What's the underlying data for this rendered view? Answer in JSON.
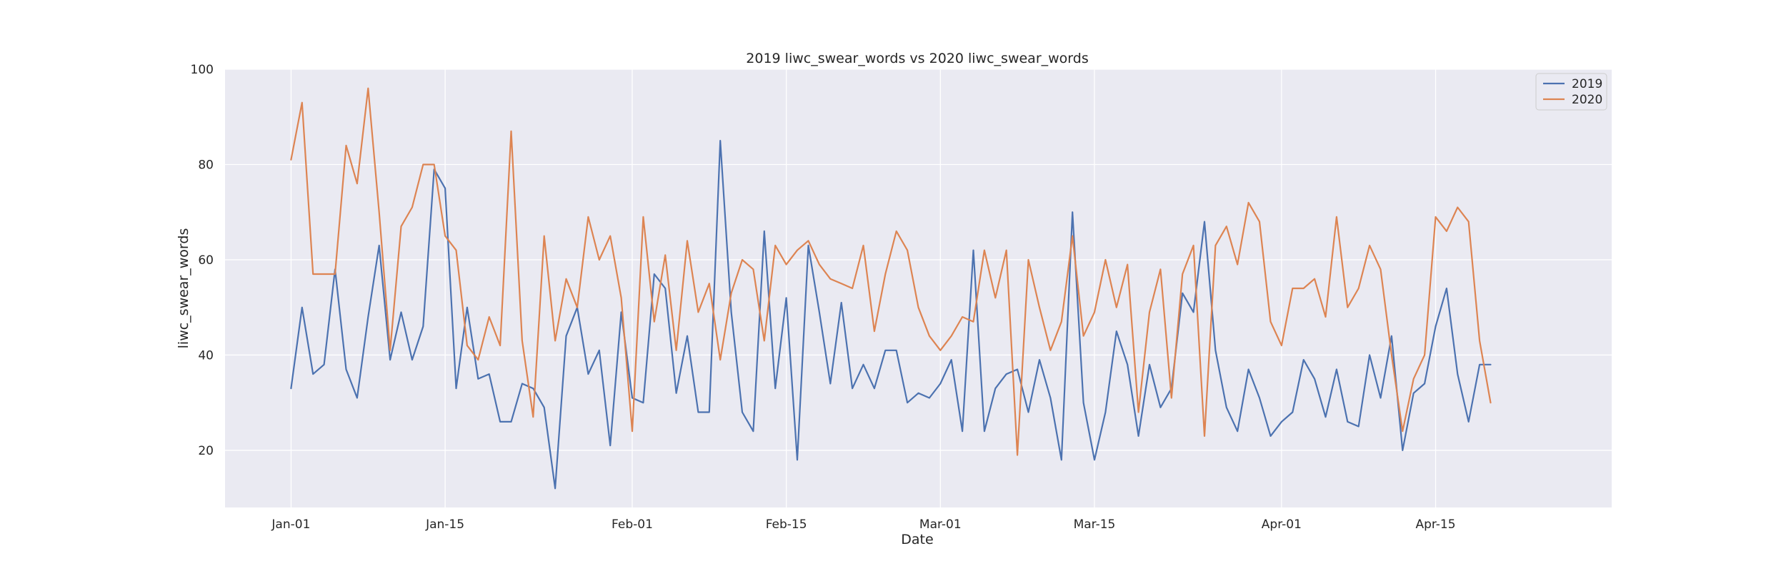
{
  "chart_data": {
    "type": "line",
    "title": "2019 liwc_swear_words vs 2020 liwc_swear_words",
    "xlabel": "Date",
    "ylabel": "liwc_swear_words",
    "x_start": "Jan-01",
    "xlim": [
      "Dec-26",
      "Apr-30"
    ],
    "ylim": [
      8,
      100
    ],
    "yticks": [
      20,
      40,
      60,
      80,
      100
    ],
    "xticks": [
      {
        "day": 0,
        "label": "Jan-01"
      },
      {
        "day": 14,
        "label": "Jan-15"
      },
      {
        "day": 31,
        "label": "Feb-01"
      },
      {
        "day": 45,
        "label": "Feb-15"
      },
      {
        "day": 59,
        "label": "Mar-01"
      },
      {
        "day": 73,
        "label": "Mar-15"
      },
      {
        "day": 90,
        "label": "Apr-01"
      },
      {
        "day": 104,
        "label": "Apr-15"
      }
    ],
    "grid": true,
    "legend_position": "top-right",
    "series": [
      {
        "name": "2019",
        "color": "#4c72b0",
        "values": [
          33,
          50,
          36,
          38,
          58,
          37,
          31,
          48,
          63,
          39,
          49,
          39,
          46,
          79,
          75,
          33,
          50,
          35,
          36,
          26,
          26,
          34,
          33,
          29,
          12,
          44,
          50,
          36,
          41,
          21,
          49,
          31,
          30,
          57,
          54,
          32,
          44,
          28,
          28,
          85,
          49,
          28,
          24,
          66,
          33,
          52,
          18,
          63,
          49,
          34,
          51,
          33,
          38,
          33,
          41,
          41,
          30,
          32,
          31,
          34,
          39,
          24,
          62,
          24,
          33,
          36,
          37,
          28,
          39,
          31,
          18,
          70,
          30,
          18,
          28,
          45,
          38,
          23,
          38,
          29,
          33,
          53,
          49,
          68,
          41,
          29,
          24,
          37,
          31,
          23,
          26,
          28,
          39,
          35,
          27,
          37,
          26,
          25,
          40,
          31,
          44,
          20,
          32,
          34,
          46,
          54,
          36,
          26,
          38,
          38
        ]
      },
      {
        "name": "2020",
        "color": "#dd8452",
        "values": [
          81,
          93,
          57,
          57,
          57,
          84,
          76,
          96,
          70,
          41,
          67,
          71,
          80,
          80,
          65,
          62,
          42,
          39,
          48,
          42,
          87,
          43,
          27,
          65,
          43,
          56,
          50,
          69,
          60,
          65,
          52,
          24,
          69,
          47,
          61,
          41,
          64,
          49,
          55,
          39,
          53,
          60,
          58,
          43,
          63,
          59,
          62,
          64,
          59,
          56,
          55,
          54,
          63,
          45,
          57,
          66,
          62,
          50,
          44,
          41,
          44,
          48,
          47,
          62,
          52,
          62,
          19,
          60,
          50,
          41,
          47,
          65,
          44,
          49,
          60,
          50,
          59,
          28,
          49,
          58,
          31,
          57,
          63,
          23,
          63,
          67,
          59,
          72,
          68,
          47,
          42,
          54,
          54,
          56,
          48,
          69,
          50,
          54,
          63,
          58,
          40,
          24,
          35,
          40,
          69,
          66,
          71,
          68,
          43,
          30
        ]
      }
    ]
  }
}
